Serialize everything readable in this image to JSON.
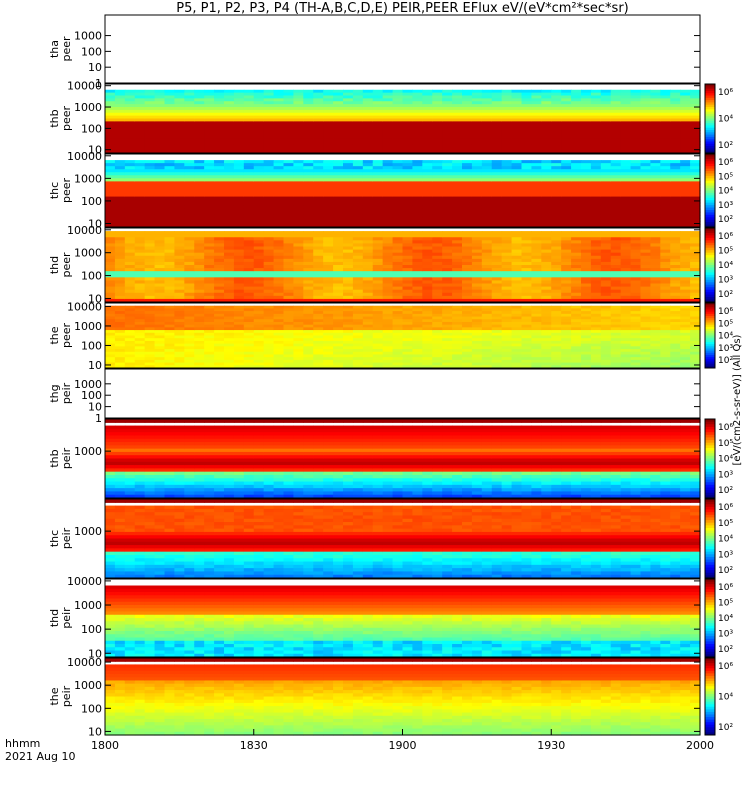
{
  "title": "P5, P1, P2, P3, P4 (TH-A,B,C,D,E) PEIR,PEER EFlux eV/(eV*cm²*sec*sr)",
  "time_axis": {
    "label": "hhmm",
    "date": "2021 Aug 10"
  },
  "units_label": "[eV/(cm2-s-sr-eV)] (All Qs)",
  "chart_data": {
    "type": "heatmap",
    "x_ticks": [
      "1800",
      "1830",
      "1900",
      "1930",
      "2000"
    ],
    "panels": [
      {
        "name": "tha\npeer",
        "yscale": "log",
        "ylim": [
          1,
          20000
        ],
        "yticks": [
          "1000",
          "100",
          "10",
          "1"
        ],
        "has_data": false
      },
      {
        "name": "thb\npeer",
        "yscale": "log",
        "ylim": [
          7,
          12000
        ],
        "yticks": [
          "10000",
          "1000",
          "100",
          "10"
        ],
        "has_data": true,
        "colorbar": [
          "10⁶",
          "10⁴",
          "10²"
        ],
        "pattern": "peer-b"
      },
      {
        "name": "thc\npeer",
        "yscale": "log",
        "ylim": [
          7,
          12000
        ],
        "yticks": [
          "10000",
          "1000",
          "100",
          "10"
        ],
        "has_data": true,
        "colorbar": [
          "10⁶",
          "10⁵",
          "10⁴",
          "10³",
          "10²"
        ],
        "pattern": "peer-c"
      },
      {
        "name": "thd\npeer",
        "yscale": "log",
        "ylim": [
          7,
          12000
        ],
        "yticks": [
          "10000",
          "1000",
          "100",
          "10"
        ],
        "has_data": true,
        "colorbar": [
          "10⁶",
          "10⁵",
          "10⁴",
          "10³",
          "10²"
        ],
        "pattern": "peer-d"
      },
      {
        "name": "the\npeer",
        "yscale": "log",
        "ylim": [
          7,
          15000
        ],
        "yticks": [
          "10000",
          "1000",
          "100",
          "10"
        ],
        "has_data": true,
        "colorbar": [
          "10⁶",
          "10⁵",
          "10⁴",
          "10³",
          "10²"
        ],
        "pattern": "peer-e"
      },
      {
        "name": "thg\npeir",
        "yscale": "log",
        "ylim": [
          1,
          20000
        ],
        "yticks": [
          "1000",
          "100",
          "10",
          "1"
        ],
        "has_data": false
      },
      {
        "name": "thb\npeir",
        "yscale": "log",
        "ylim": [
          7,
          30000
        ],
        "yticks": [
          "1000"
        ],
        "has_data": true,
        "colorbar": [
          "10⁶",
          "10⁵",
          "10⁴",
          "10³",
          "10²"
        ],
        "pattern": "peir-b"
      },
      {
        "name": "thc\npeir",
        "yscale": "log",
        "ylim": [
          7,
          30000
        ],
        "yticks": [
          "1000"
        ],
        "has_data": true,
        "colorbar": [
          "10⁶",
          "10⁵",
          "10⁴",
          "10³",
          "10²"
        ],
        "pattern": "peir-c"
      },
      {
        "name": "thd\npeir",
        "yscale": "log",
        "ylim": [
          7,
          12000
        ],
        "yticks": [
          "10000",
          "1000",
          "100",
          "10"
        ],
        "has_data": true,
        "colorbar": [
          "10⁶",
          "10⁵",
          "10⁴",
          "10³",
          "10²"
        ],
        "pattern": "peir-d"
      },
      {
        "name": "the\npeir",
        "yscale": "log",
        "ylim": [
          7,
          15000
        ],
        "yticks": [
          "10000",
          "1000",
          "100",
          "10"
        ],
        "has_data": true,
        "colorbar": [
          "10⁶",
          "10⁴",
          "10²"
        ],
        "pattern": "peir-e"
      }
    ]
  }
}
